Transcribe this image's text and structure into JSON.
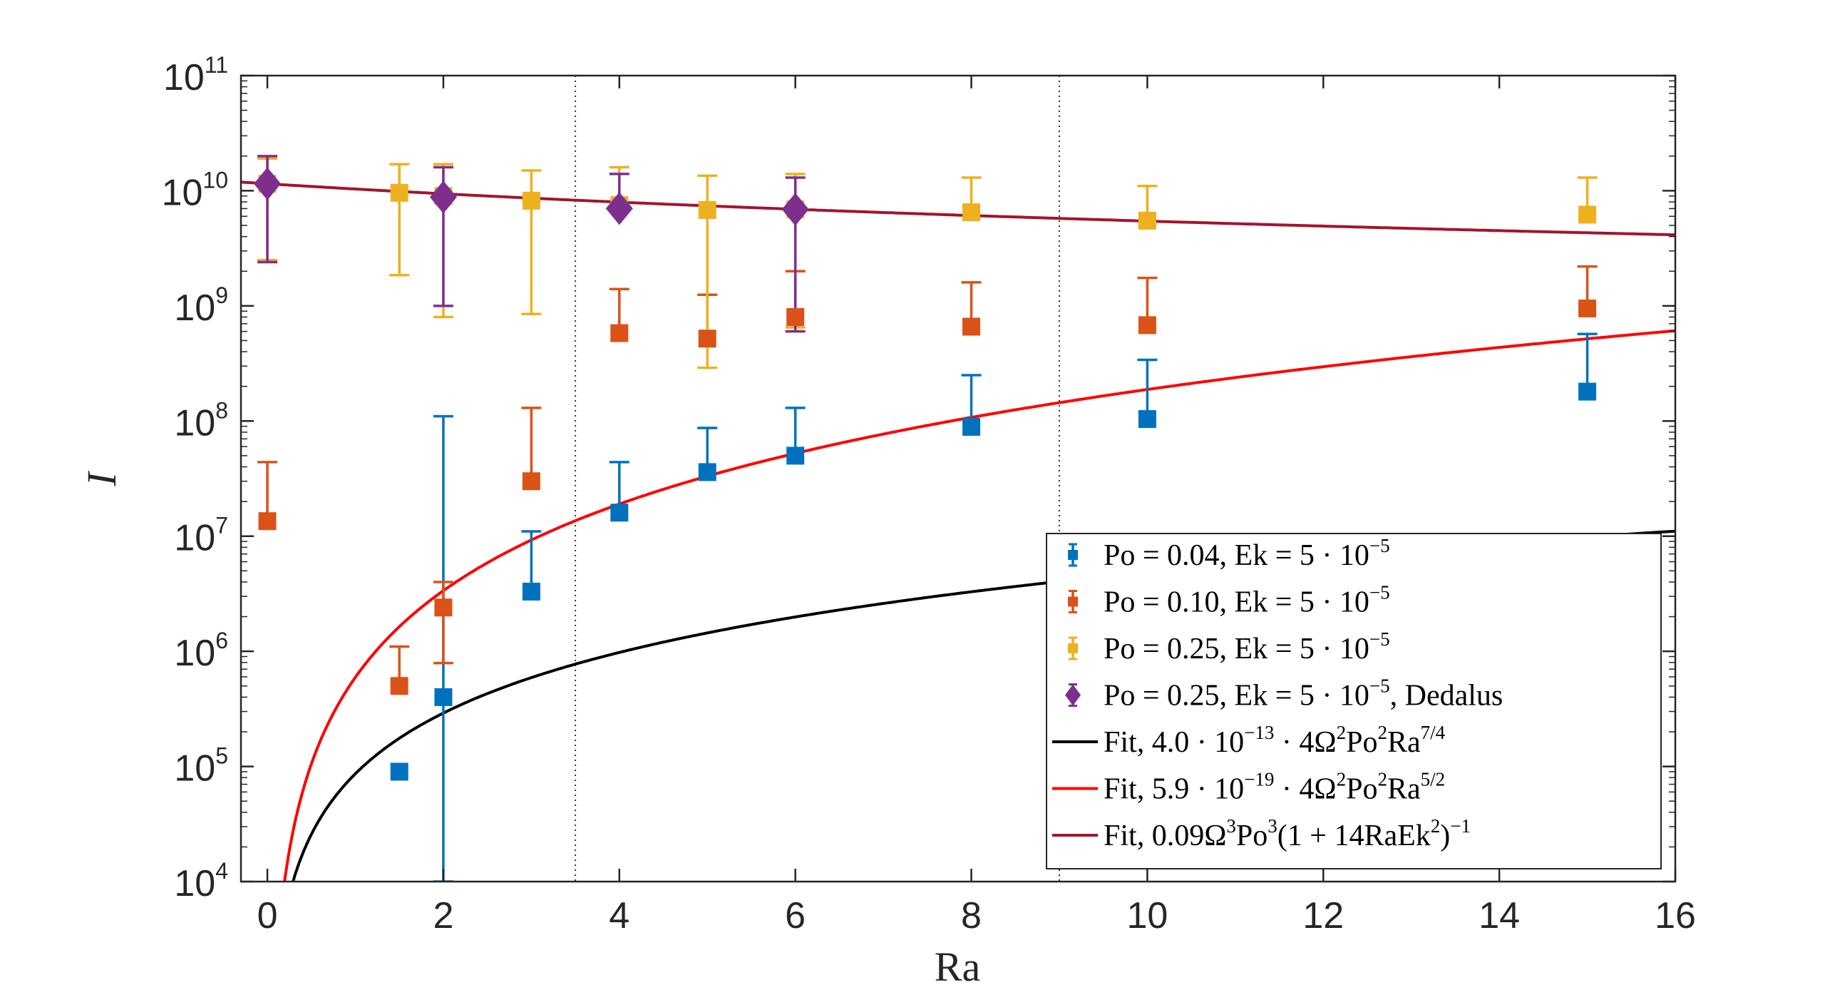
{
  "chart_data": {
    "type": "scatter",
    "title": "",
    "xlabel": "Ra",
    "ylabel": "I",
    "xlim": [
      -0.3,
      16
    ],
    "ylim_log10": [
      4,
      11
    ],
    "x_ticks": [
      0,
      2,
      4,
      6,
      8,
      10,
      12,
      14,
      16
    ],
    "x_tick_labels": [
      "0",
      "2",
      "4",
      "6",
      "8",
      "10",
      "12",
      "14",
      "16"
    ],
    "y_ticks_log10": [
      4,
      5,
      6,
      7,
      8,
      9,
      10,
      11
    ],
    "y_tick_base": "10",
    "y_tick_exponents": [
      "4",
      "5",
      "6",
      "7",
      "8",
      "9",
      "10",
      "11"
    ],
    "vertical_reference_lines_x": [
      3.5,
      9
    ],
    "legend_location": "bottom-right",
    "series": [
      {
        "name": "Po = 0.04, Ek = 5·10^-5",
        "color": "#0072BD",
        "marker": "square",
        "points": [
          {
            "x": 1.5,
            "y": 90000.0,
            "lo": null,
            "hi": null
          },
          {
            "x": 2,
            "y": 400000.0,
            "lo": 10000.0,
            "hi": 110000000.0
          },
          {
            "x": 3,
            "y": 3300000.0,
            "lo": null,
            "hi": 11000000.0
          },
          {
            "x": 4,
            "y": 16000000.0,
            "lo": null,
            "hi": 44000000.0
          },
          {
            "x": 5,
            "y": 36000000.0,
            "lo": null,
            "hi": 87000000.0
          },
          {
            "x": 6,
            "y": 50000000.0,
            "lo": null,
            "hi": 130000000.0
          },
          {
            "x": 8,
            "y": 89000000.0,
            "lo": null,
            "hi": 250000000.0
          },
          {
            "x": 10,
            "y": 104000000.0,
            "lo": null,
            "hi": 340000000.0
          },
          {
            "x": 15,
            "y": 180000000.0,
            "lo": null,
            "hi": 570000000.0
          }
        ]
      },
      {
        "name": "Po = 0.10, Ek = 5·10^-5",
        "color": "#D95319",
        "marker": "square",
        "points": [
          {
            "x": 0,
            "y": 13500000.0,
            "lo": null,
            "hi": 44000000.0
          },
          {
            "x": 1.5,
            "y": 500000.0,
            "lo": null,
            "hi": 1100000.0
          },
          {
            "x": 2,
            "y": 2400000.0,
            "lo": 790000.0,
            "hi": 4000000.0
          },
          {
            "x": 3,
            "y": 30000000.0,
            "lo": null,
            "hi": 130000000.0
          },
          {
            "x": 4,
            "y": 580000000.0,
            "lo": null,
            "hi": 1400000000.0
          },
          {
            "x": 5,
            "y": 520000000.0,
            "lo": null,
            "hi": 1250000000.0
          },
          {
            "x": 6,
            "y": 800000000.0,
            "lo": null,
            "hi": 2000000000.0
          },
          {
            "x": 8,
            "y": 660000000.0,
            "lo": null,
            "hi": 1600000000.0
          },
          {
            "x": 10,
            "y": 680000000.0,
            "lo": null,
            "hi": 1750000000.0
          },
          {
            "x": 15,
            "y": 950000000.0,
            "lo": null,
            "hi": 2200000000.0
          }
        ]
      },
      {
        "name": "Po = 0.25, Ek = 5·10^-5",
        "color": "#EDB120",
        "marker": "square",
        "points": [
          {
            "x": 0,
            "y": 11500000000.0,
            "lo": 2500000000.0,
            "hi": 19000000000.0
          },
          {
            "x": 1.5,
            "y": 9600000000.0,
            "lo": 1850000000.0,
            "hi": 17000000000.0
          },
          {
            "x": 2,
            "y": 9000000000.0,
            "lo": 800000000.0,
            "hi": 17000000000.0
          },
          {
            "x": 3,
            "y": 8200000000.0,
            "lo": 850000000.0,
            "hi": 15000000000.0
          },
          {
            "x": 4,
            "y": 7500000000.0,
            "lo": null,
            "hi": 16000000000.0
          },
          {
            "x": 5,
            "y": 6800000000.0,
            "lo": 290000000.0,
            "hi": 13500000000.0
          },
          {
            "x": 6,
            "y": 6900000000.0,
            "lo": 650000000.0,
            "hi": 14000000000.0
          },
          {
            "x": 8,
            "y": 6500000000.0,
            "lo": null,
            "hi": 13000000000.0
          },
          {
            "x": 10,
            "y": 5500000000.0,
            "lo": null,
            "hi": 11000000000.0
          },
          {
            "x": 15,
            "y": 6200000000.0,
            "lo": null,
            "hi": 13000000000.0
          }
        ]
      },
      {
        "name": "Po = 0.25, Ek = 5·10^-5, Dedalus",
        "color": "#7E2F8E",
        "marker": "diamond",
        "points": [
          {
            "x": 0,
            "y": 11500000000.0,
            "lo": 2400000000.0,
            "hi": 20000000000.0
          },
          {
            "x": 2,
            "y": 8800000000.0,
            "lo": 1000000000.0,
            "hi": 16000000000.0
          },
          {
            "x": 4,
            "y": 7000000000.0,
            "lo": null,
            "hi": 14000000000.0
          },
          {
            "x": 6,
            "y": 6900000000.0,
            "lo": 600000000.0,
            "hi": 13000000000.0
          }
        ]
      }
    ],
    "fits": [
      {
        "name": "Fit, 4.0·10^-13·4Ω²Po²Ra^(7/4)",
        "color": "#000000",
        "form": "power",
        "coef": 86400.0,
        "exponent": 1.75
      },
      {
        "name": "Fit, 5.9·10^-19·4Ω²Po²Ra^(5/2)",
        "color": "#FF0000",
        "form": "power",
        "coef": 594000.0,
        "exponent": 2.5
      },
      {
        "name": "Fit, 0.09Ω³Po³(1+14RaEk²)^-1",
        "color": "#A2142F",
        "form": "decay",
        "A": 11500000000.0,
        "b": 0.111
      }
    ],
    "legend": {
      "entries": [
        {
          "prefix": "Po = 0.04, Ek = 5 · 10",
          "sup": "−5",
          "suffix": ""
        },
        {
          "prefix": "Po = 0.10, Ek = 5 · 10",
          "sup": "−5",
          "suffix": ""
        },
        {
          "prefix": "Po = 0.25, Ek = 5 · 10",
          "sup": "−5",
          "suffix": ""
        },
        {
          "prefix": "Po = 0.25, Ek = 5 · 10",
          "sup": "−5",
          "suffix": ", Dedalus"
        },
        {
          "prefix": "Fit, 4.0 · 10",
          "sup": "−13",
          "mid": " · 4Ω",
          "sup2": "2",
          "mid2": "Po",
          "sup3": "2",
          "mid3": "Ra",
          "sup4": "7/4",
          "suffix": ""
        },
        {
          "prefix": "Fit, 5.9 · 10",
          "sup": "−19",
          "mid": " · 4Ω",
          "sup2": "2",
          "mid2": "Po",
          "sup3": "2",
          "mid3": "Ra",
          "sup4": "5/2",
          "suffix": ""
        },
        {
          "prefix": "Fit, 0.09Ω",
          "sup": "3",
          "mid": "Po",
          "sup2": "3",
          "mid2": "(1 + 14RaEk",
          "sup3": "2",
          "mid3": ")",
          "sup4": "−1",
          "suffix": ""
        }
      ]
    }
  }
}
